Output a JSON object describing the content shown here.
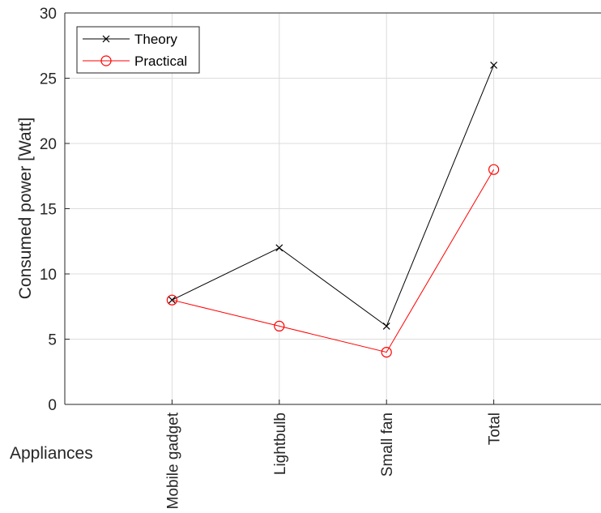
{
  "chart_data": {
    "type": "line",
    "categories": [
      "Mobile gadget",
      "Lightbulb",
      "Small fan",
      "Total"
    ],
    "series": [
      {
        "name": "Theory",
        "values": [
          8,
          12,
          6,
          26
        ],
        "color": "#000000",
        "marker": "x"
      },
      {
        "name": "Practical",
        "values": [
          8,
          6,
          4,
          18
        ],
        "color": "#ff0000",
        "marker": "o"
      }
    ],
    "xlabel": "Appliances",
    "ylabel": "Consumed power [Watt]",
    "ylim": [
      0,
      30
    ],
    "yticks": [
      0,
      5,
      10,
      15,
      20,
      25,
      30
    ],
    "grid": true,
    "legend_position": "top-left"
  }
}
